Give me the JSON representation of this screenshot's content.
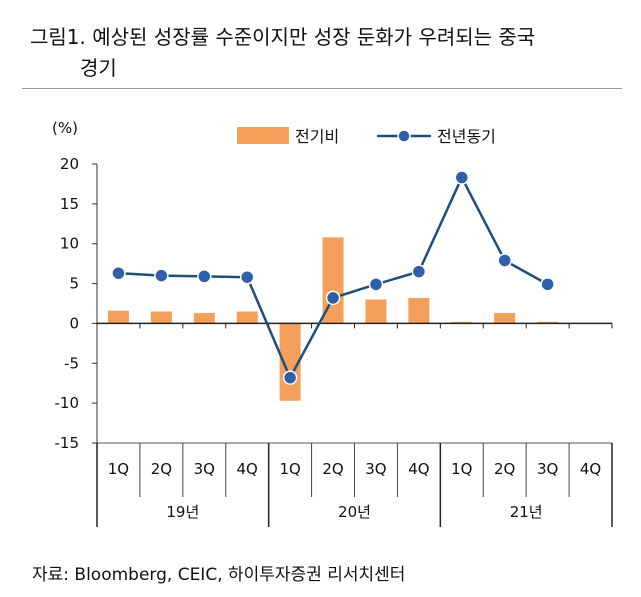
{
  "title": {
    "line1": "그림1. 예상된 성장률 수준이지만 성장 둔화가 우려되는 중국",
    "line2": "경기"
  },
  "source": "자료: Bloomberg, CEIC,  하이투자증권  리서치센터",
  "colors": {
    "bar": "#f4a05a",
    "line": "#1f4e79",
    "marker_fill": "#2e5fa8",
    "marker_stroke": "#ffffff"
  },
  "chart_data": {
    "type": "bar+line",
    "unit_label": "(%)",
    "categories": [
      "1Q",
      "2Q",
      "3Q",
      "4Q",
      "1Q",
      "2Q",
      "3Q",
      "4Q",
      "1Q",
      "2Q",
      "3Q",
      "4Q"
    ],
    "groups": [
      {
        "label": "19년",
        "span": 4
      },
      {
        "label": "20년",
        "span": 4
      },
      {
        "label": "21년",
        "span": 4
      }
    ],
    "ylim": [
      -15,
      20
    ],
    "yticks": [
      "20",
      "15",
      "10",
      "5",
      "0",
      "-5",
      "-10",
      "-15"
    ],
    "ytick_values": [
      20,
      15,
      10,
      5,
      0,
      -5,
      -10,
      -15
    ],
    "series": [
      {
        "name": "전기비",
        "type": "bar",
        "values": [
          1.6,
          1.5,
          1.3,
          1.5,
          -9.7,
          10.8,
          3.0,
          3.2,
          0.2,
          1.3,
          0.2,
          null
        ]
      },
      {
        "name": "전년동기",
        "type": "line",
        "values": [
          6.3,
          6.0,
          5.9,
          5.8,
          -6.8,
          3.2,
          4.9,
          6.5,
          18.3,
          7.9,
          4.9,
          null
        ]
      }
    ]
  }
}
